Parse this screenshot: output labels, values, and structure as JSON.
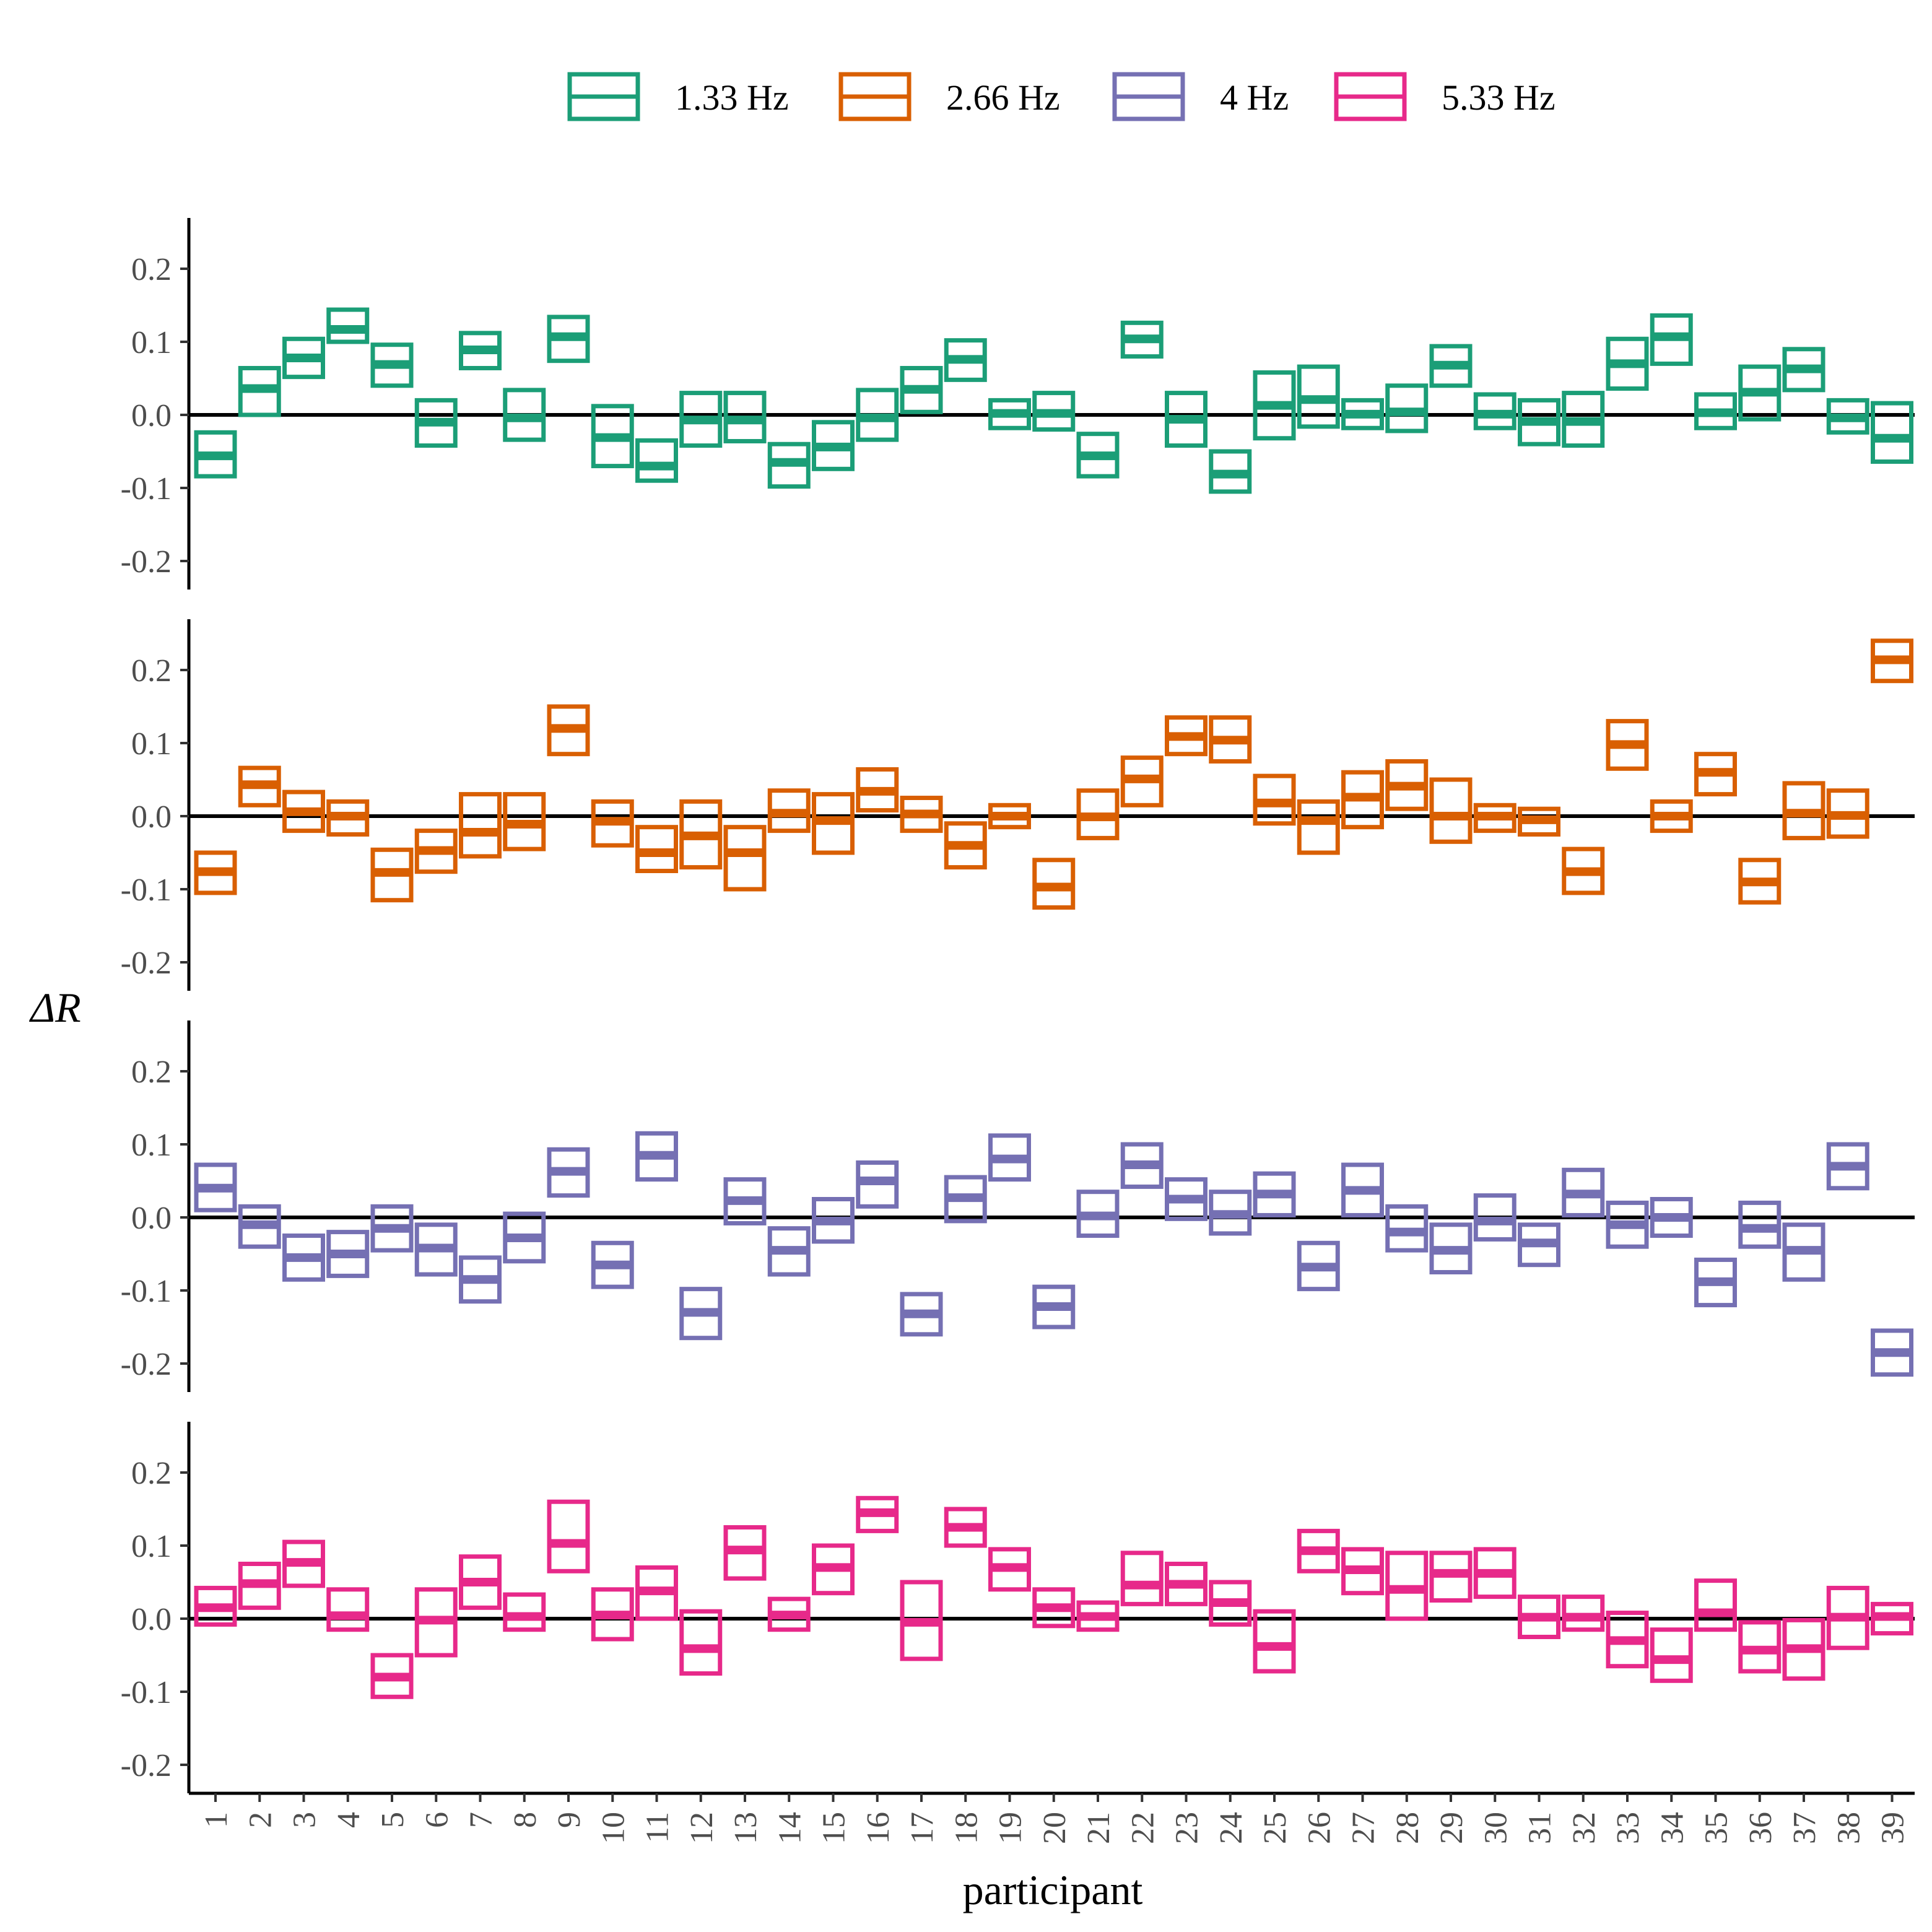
{
  "chart_data": {
    "type": "crossbar",
    "xlabel": "participant",
    "ylabel": "ΔR",
    "categories": [
      "1",
      "2",
      "3",
      "4",
      "5",
      "6",
      "7",
      "8",
      "9",
      "10",
      "11",
      "12",
      "13",
      "14",
      "15",
      "16",
      "17",
      "18",
      "19",
      "20",
      "21",
      "22",
      "23",
      "24",
      "25",
      "26",
      "27",
      "28",
      "29",
      "30",
      "31",
      "32",
      "33",
      "34",
      "35",
      "36",
      "37",
      "38",
      "39"
    ],
    "yticks": [
      "0.2",
      "0.1",
      "0.0",
      "-0.1",
      "-0.2"
    ],
    "ytick_values": [
      0.2,
      0.1,
      0.0,
      -0.1,
      -0.2
    ],
    "ylim": [
      -0.24,
      0.27
    ],
    "legend_position": "top",
    "reference_line": 0,
    "series": [
      {
        "name": "1.33 Hz",
        "color": "#1b9e77",
        "center": [
          -0.056,
          0.036,
          0.078,
          0.117,
          0.069,
          -0.01,
          0.089,
          -0.004,
          0.107,
          -0.031,
          -0.07,
          -0.007,
          -0.007,
          -0.065,
          -0.044,
          -0.004,
          0.035,
          0.076,
          0.002,
          0.002,
          -0.056,
          0.104,
          -0.006,
          -0.081,
          0.013,
          0.021,
          0.001,
          0.004,
          0.068,
          0.001,
          -0.009,
          -0.009,
          0.07,
          0.107,
          0.003,
          0.031,
          0.063,
          -0.004,
          -0.032
        ],
        "low": [
          -0.084,
          0.0,
          0.052,
          0.1,
          0.04,
          -0.042,
          0.064,
          -0.034,
          0.074,
          -0.07,
          -0.09,
          -0.042,
          -0.036,
          -0.098,
          -0.074,
          -0.034,
          0.004,
          0.048,
          -0.018,
          -0.02,
          -0.084,
          0.08,
          -0.042,
          -0.105,
          -0.032,
          -0.016,
          -0.018,
          -0.022,
          0.04,
          -0.018,
          -0.04,
          -0.042,
          0.036,
          0.07,
          -0.018,
          -0.006,
          0.034,
          -0.024,
          -0.064
        ],
        "high": [
          -0.024,
          0.064,
          0.104,
          0.144,
          0.096,
          0.02,
          0.112,
          0.034,
          0.134,
          0.012,
          -0.035,
          0.03,
          0.03,
          -0.04,
          -0.01,
          0.034,
          0.064,
          0.102,
          0.02,
          0.03,
          -0.026,
          0.126,
          0.03,
          -0.05,
          0.058,
          0.066,
          0.02,
          0.04,
          0.094,
          0.028,
          0.02,
          0.03,
          0.104,
          0.136,
          0.028,
          0.066,
          0.09,
          0.02,
          0.016
        ]
      },
      {
        "name": "2.66 Hz",
        "color": "#d95f02",
        "center": [
          -0.076,
          0.043,
          0.006,
          0.0,
          -0.077,
          -0.047,
          -0.022,
          -0.011,
          0.12,
          -0.007,
          -0.05,
          -0.027,
          -0.05,
          0.004,
          -0.006,
          0.034,
          0.003,
          -0.04,
          0.0,
          -0.097,
          -0.001,
          0.051,
          0.109,
          0.104,
          0.018,
          -0.006,
          0.026,
          0.041,
          0.0,
          0.0,
          -0.005,
          -0.076,
          0.098,
          0.0,
          0.06,
          -0.09,
          0.004,
          0.001,
          0.214
        ],
        "low": [
          -0.105,
          0.015,
          -0.02,
          -0.025,
          -0.115,
          -0.076,
          -0.055,
          -0.045,
          0.085,
          -0.04,
          -0.075,
          -0.07,
          -0.1,
          -0.02,
          -0.05,
          0.008,
          -0.02,
          -0.07,
          -0.015,
          -0.125,
          -0.03,
          0.015,
          0.085,
          0.075,
          -0.01,
          -0.05,
          -0.015,
          0.01,
          -0.035,
          -0.02,
          -0.025,
          -0.105,
          0.065,
          -0.02,
          0.03,
          -0.118,
          -0.03,
          -0.028,
          0.185
        ],
        "high": [
          -0.05,
          0.066,
          0.033,
          0.02,
          -0.046,
          -0.02,
          0.03,
          0.03,
          0.15,
          0.02,
          -0.015,
          0.02,
          -0.015,
          0.035,
          0.03,
          0.064,
          0.025,
          -0.01,
          0.015,
          -0.06,
          0.035,
          0.08,
          0.135,
          0.135,
          0.055,
          0.02,
          0.06,
          0.075,
          0.05,
          0.015,
          0.01,
          -0.045,
          0.13,
          0.02,
          0.085,
          -0.06,
          0.045,
          0.035,
          0.24
        ]
      },
      {
        "name": "4 Hz",
        "color": "#7570b3",
        "center": [
          0.04,
          -0.01,
          -0.055,
          -0.05,
          -0.015,
          -0.042,
          -0.085,
          -0.028,
          0.063,
          -0.065,
          0.085,
          -0.13,
          0.023,
          -0.045,
          -0.005,
          0.05,
          -0.132,
          0.027,
          0.08,
          -0.122,
          0.002,
          0.072,
          0.025,
          0.004,
          0.032,
          -0.068,
          0.037,
          -0.02,
          -0.045,
          -0.005,
          -0.035,
          0.032,
          -0.01,
          0.0,
          -0.088,
          -0.015,
          -0.045,
          0.07,
          -0.185
        ],
        "low": [
          0.01,
          -0.04,
          -0.085,
          -0.08,
          -0.045,
          -0.078,
          -0.115,
          -0.06,
          0.03,
          -0.095,
          0.052,
          -0.165,
          -0.008,
          -0.078,
          -0.033,
          0.015,
          -0.16,
          -0.005,
          0.052,
          -0.15,
          -0.025,
          0.042,
          -0.002,
          -0.022,
          0.003,
          -0.098,
          0.003,
          -0.045,
          -0.075,
          -0.03,
          -0.065,
          0.003,
          -0.04,
          -0.025,
          -0.12,
          -0.04,
          -0.085,
          0.04,
          -0.215
        ],
        "high": [
          0.072,
          0.015,
          -0.025,
          -0.02,
          0.015,
          -0.01,
          -0.055,
          0.005,
          0.093,
          -0.035,
          0.115,
          -0.098,
          0.052,
          -0.015,
          0.025,
          0.075,
          -0.105,
          0.055,
          0.112,
          -0.095,
          0.035,
          0.1,
          0.052,
          0.035,
          0.06,
          -0.035,
          0.072,
          0.015,
          -0.01,
          0.03,
          -0.01,
          0.065,
          0.02,
          0.025,
          -0.058,
          0.02,
          -0.01,
          0.1,
          -0.155
        ]
      },
      {
        "name": "5.33 Hz",
        "color": "#e7298a",
        "center": [
          0.015,
          0.048,
          0.077,
          0.004,
          -0.08,
          -0.002,
          0.05,
          0.003,
          0.103,
          0.005,
          0.038,
          -0.041,
          0.094,
          0.005,
          0.07,
          0.145,
          -0.005,
          0.125,
          0.07,
          0.015,
          0.003,
          0.046,
          0.047,
          0.022,
          -0.038,
          0.093,
          0.067,
          0.04,
          0.062,
          0.062,
          0.002,
          0.002,
          -0.03,
          -0.056,
          0.008,
          -0.043,
          -0.041,
          0.002,
          0.003
        ],
        "low": [
          -0.008,
          0.015,
          0.045,
          -0.015,
          -0.107,
          -0.05,
          0.015,
          -0.015,
          0.065,
          -0.028,
          0.0,
          -0.075,
          0.055,
          -0.015,
          0.035,
          0.12,
          -0.055,
          0.1,
          0.04,
          -0.01,
          -0.015,
          0.02,
          0.02,
          -0.008,
          -0.072,
          0.065,
          0.035,
          0.0,
          0.025,
          0.03,
          -0.025,
          -0.015,
          -0.065,
          -0.085,
          -0.015,
          -0.072,
          -0.082,
          -0.04,
          -0.02
        ],
        "high": [
          0.042,
          0.075,
          0.105,
          0.04,
          -0.05,
          0.04,
          0.085,
          0.033,
          0.16,
          0.04,
          0.07,
          0.01,
          0.125,
          0.027,
          0.1,
          0.165,
          0.05,
          0.15,
          0.095,
          0.04,
          0.022,
          0.09,
          0.075,
          0.05,
          0.01,
          0.12,
          0.095,
          0.09,
          0.09,
          0.095,
          0.03,
          0.03,
          0.008,
          -0.015,
          0.052,
          -0.005,
          -0.002,
          0.042,
          0.02
        ]
      }
    ]
  }
}
